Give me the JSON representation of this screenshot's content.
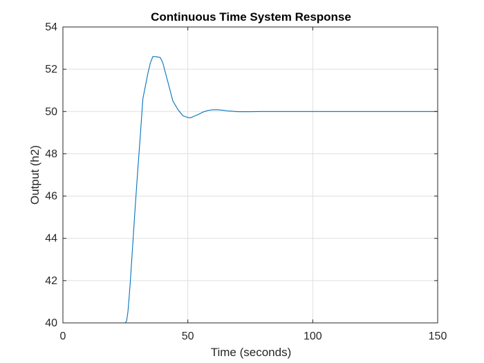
{
  "chart_data": {
    "type": "line",
    "title": "Continuous Time System Response",
    "xlabel": "Time (seconds)",
    "ylabel": "Output (h2)",
    "xlim": [
      0,
      150
    ],
    "ylim": [
      40,
      54
    ],
    "xticks": [
      0,
      50,
      100,
      150
    ],
    "yticks": [
      40,
      42,
      44,
      46,
      48,
      50,
      52,
      54
    ],
    "xtick_labels": [
      "0",
      "50",
      "100",
      "150"
    ],
    "ytick_labels": [
      "40",
      "42",
      "44",
      "46",
      "48",
      "50",
      "52",
      "54"
    ],
    "grid": true,
    "line_color": "#0072BD",
    "grid_color": "#dfdfdf",
    "series": [
      {
        "x": [
          0,
          25,
          25.5,
          26,
          26.5,
          27,
          28,
          29,
          30,
          31,
          32,
          33,
          34,
          35,
          36,
          37,
          38,
          39,
          40,
          42,
          44,
          46,
          48,
          50,
          51,
          52,
          54,
          56,
          58,
          60,
          62,
          64,
          66,
          68,
          70,
          75,
          80,
          85,
          90,
          95,
          100,
          110,
          120,
          130,
          140,
          150
        ],
        "y": [
          40,
          40,
          40.1,
          40.5,
          41.2,
          42.0,
          43.8,
          45.6,
          47.3,
          48.9,
          50.6,
          51.2,
          51.8,
          52.3,
          52.6,
          52.6,
          52.58,
          52.55,
          52.3,
          51.4,
          50.5,
          50.1,
          49.8,
          49.72,
          49.7,
          49.75,
          49.85,
          49.97,
          50.05,
          50.08,
          50.08,
          50.06,
          50.03,
          50.01,
          49.99,
          49.99,
          50.0,
          50.0,
          50.0,
          50.0,
          50.0,
          50.0,
          50.0,
          50.0,
          50.0,
          50.0
        ]
      }
    ]
  }
}
